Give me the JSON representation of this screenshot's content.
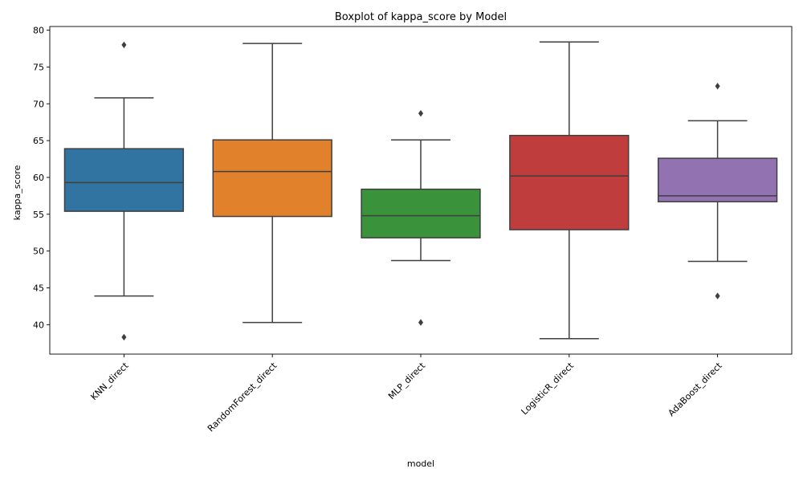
{
  "chart_data": {
    "type": "box",
    "title": "Boxplot of kappa_score by Model",
    "xlabel": "model",
    "ylabel": "kappa_score",
    "ylim": [
      36.0,
      80.5
    ],
    "yticks": [
      40,
      45,
      50,
      55,
      60,
      65,
      70,
      75,
      80
    ],
    "grid": false,
    "categories": [
      "KNN_direct",
      "RandomForest_direct",
      "MLP_direct",
      "LogisticR_direct",
      "AdaBoost_direct"
    ],
    "colors": [
      "#3274a1",
      "#e1812c",
      "#3a923a",
      "#c03d3e",
      "#9372b2"
    ],
    "boxes": [
      {
        "category": "KNN_direct",
        "whisker_low": 43.9,
        "q1": 55.4,
        "median": 59.3,
        "q3": 63.9,
        "whisker_high": 70.8,
        "outliers": [
          78.0,
          38.3
        ]
      },
      {
        "category": "RandomForest_direct",
        "whisker_low": 40.3,
        "q1": 54.7,
        "median": 60.8,
        "q3": 65.1,
        "whisker_high": 78.2,
        "outliers": []
      },
      {
        "category": "MLP_direct",
        "whisker_low": 48.7,
        "q1": 51.8,
        "median": 54.8,
        "q3": 58.4,
        "whisker_high": 65.1,
        "outliers": [
          68.7,
          40.3
        ]
      },
      {
        "category": "LogisticR_direct",
        "whisker_low": 38.1,
        "q1": 52.9,
        "median": 60.2,
        "q3": 65.7,
        "whisker_high": 78.4,
        "outliers": []
      },
      {
        "category": "AdaBoost_direct",
        "whisker_low": 48.6,
        "q1": 56.7,
        "median": 57.5,
        "q3": 62.6,
        "whisker_high": 67.7,
        "outliers": [
          72.4,
          43.9
        ]
      }
    ]
  }
}
